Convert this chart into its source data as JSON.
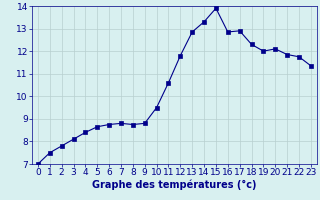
{
  "x": [
    0,
    1,
    2,
    3,
    4,
    5,
    6,
    7,
    8,
    9,
    10,
    11,
    12,
    13,
    14,
    15,
    16,
    17,
    18,
    19,
    20,
    21,
    22,
    23
  ],
  "y": [
    7.0,
    7.5,
    7.8,
    8.1,
    8.4,
    8.65,
    8.75,
    8.8,
    8.75,
    8.8,
    9.5,
    10.6,
    11.8,
    12.85,
    13.3,
    13.9,
    12.85,
    12.9,
    12.3,
    12.0,
    12.1,
    11.85,
    11.75,
    11.35
  ],
  "xlabel": "Graphe des températures (°c)",
  "xlim_min": -0.5,
  "xlim_max": 23.5,
  "ylim_min": 7,
  "ylim_max": 14,
  "yticks": [
    7,
    8,
    9,
    10,
    11,
    12,
    13,
    14
  ],
  "xticks": [
    0,
    1,
    2,
    3,
    4,
    5,
    6,
    7,
    8,
    9,
    10,
    11,
    12,
    13,
    14,
    15,
    16,
    17,
    18,
    19,
    20,
    21,
    22,
    23
  ],
  "line_color": "#00008b",
  "marker": "s",
  "marker_size": 2.5,
  "bg_color": "#d8f0f0",
  "grid_color": "#b8d0d0",
  "xlabel_bg": "#2222aa",
  "xlabel_color": "#ffffff",
  "tick_label_color": "#00008b",
  "axis_label_fontsize": 7,
  "tick_fontsize": 6.5
}
